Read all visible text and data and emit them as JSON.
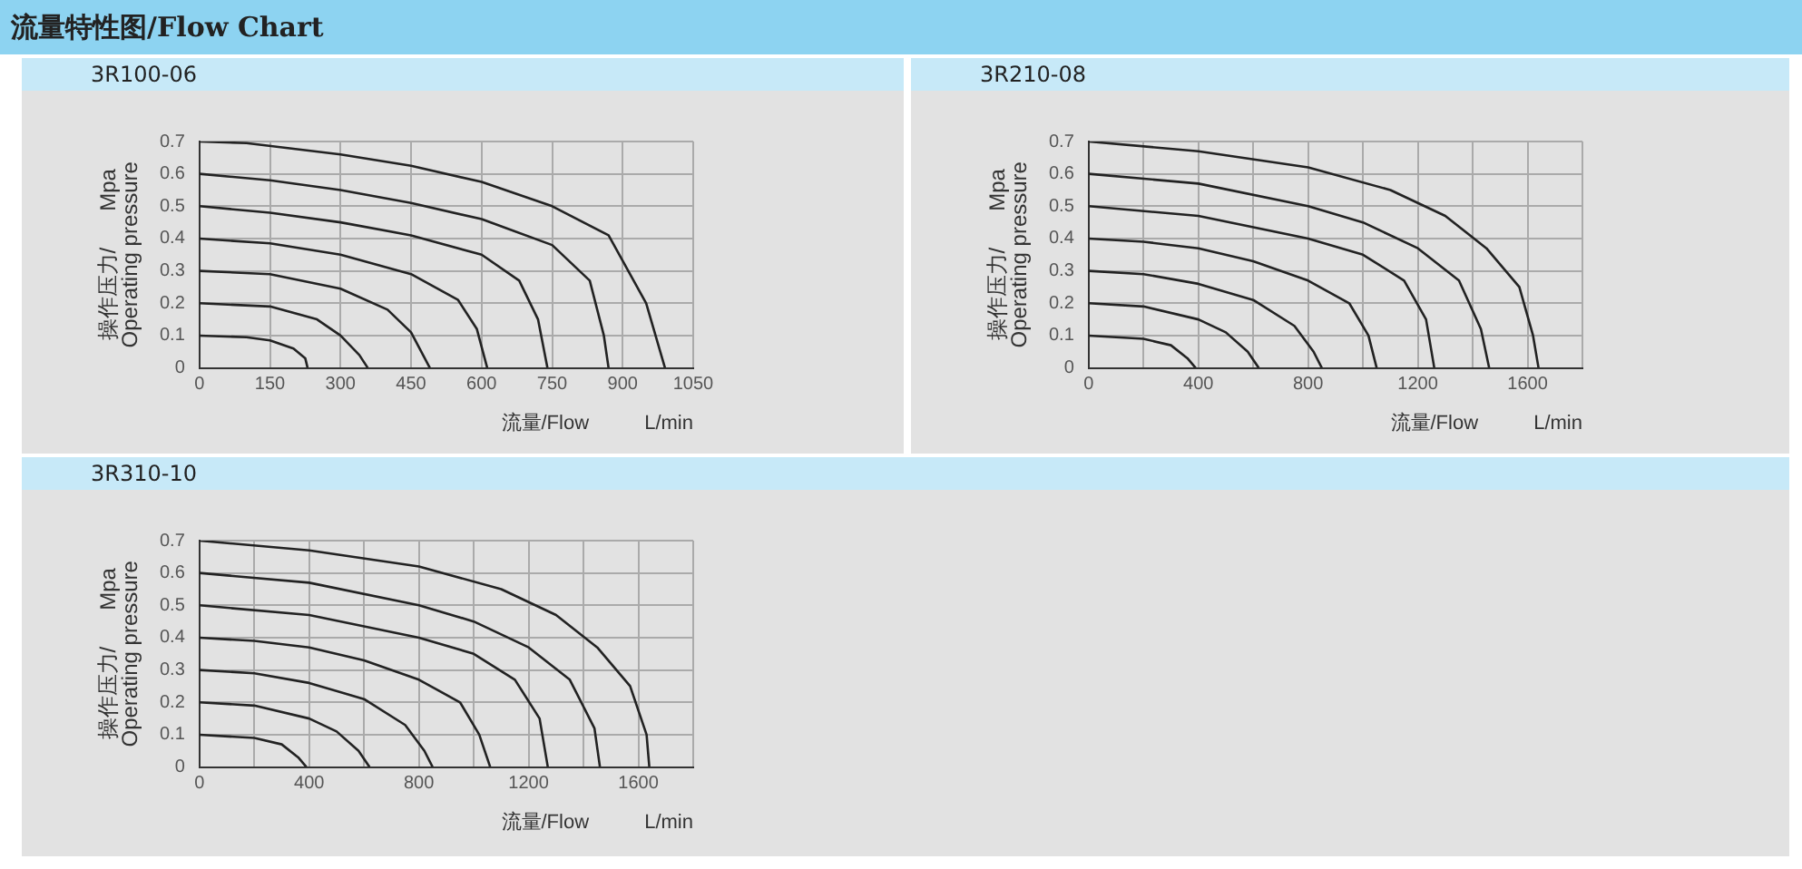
{
  "chart_data": [
    {
      "type": "line",
      "title": "流量特性图/Flow Chart",
      "subtitle": "3R100-06",
      "xlabel": "流量/Flow          L/min",
      "ylabel": "操作压力/      Mpa\nOperating pressure",
      "xlim": [
        0,
        1050
      ],
      "xticks": [
        0,
        150,
        300,
        450,
        600,
        750,
        900,
        1050
      ],
      "ylim": [
        0,
        0.7
      ],
      "yticks": [
        0,
        0.1,
        0.2,
        0.3,
        0.4,
        0.5,
        0.6,
        0.7
      ],
      "grid": true,
      "legend": false,
      "marker": "none",
      "line_style": "solid",
      "series": [
        {
          "color": "#222222",
          "x": [
            0,
            100,
            150,
            200,
            225,
            230
          ],
          "values": [
            0.1,
            0.095,
            0.085,
            0.06,
            0.03,
            0
          ]
        },
        {
          "color": "#222222",
          "x": [
            0,
            150,
            250,
            300,
            340,
            358
          ],
          "values": [
            0.2,
            0.19,
            0.15,
            0.1,
            0.04,
            0
          ]
        },
        {
          "color": "#222222",
          "x": [
            0,
            150,
            300,
            400,
            450,
            490
          ],
          "values": [
            0.3,
            0.29,
            0.245,
            0.18,
            0.11,
            0
          ]
        },
        {
          "color": "#222222",
          "x": [
            0,
            150,
            300,
            450,
            550,
            590,
            612
          ],
          "values": [
            0.4,
            0.385,
            0.35,
            0.29,
            0.21,
            0.12,
            0
          ]
        },
        {
          "color": "#222222",
          "x": [
            0,
            150,
            300,
            450,
            600,
            680,
            720,
            740
          ],
          "values": [
            0.5,
            0.48,
            0.45,
            0.41,
            0.35,
            0.27,
            0.15,
            0
          ]
        },
        {
          "color": "#222222",
          "x": [
            0,
            150,
            300,
            450,
            600,
            750,
            830,
            860,
            870
          ],
          "values": [
            0.6,
            0.58,
            0.55,
            0.51,
            0.46,
            0.38,
            0.27,
            0.1,
            0
          ]
        },
        {
          "color": "#222222",
          "x": [
            0,
            100,
            300,
            450,
            600,
            750,
            870,
            950,
            990
          ],
          "values": [
            0.7,
            0.695,
            0.66,
            0.625,
            0.575,
            0.5,
            0.41,
            0.2,
            0
          ]
        }
      ]
    },
    {
      "type": "line",
      "subtitle": "3R210-08",
      "xlabel": "流量/Flow          L/min",
      "ylabel": "操作压力/      Mpa\nOperating pressure",
      "xlim": [
        0,
        1800
      ],
      "xticks": [
        0,
        {
          "value": 200,
          "label": null
        },
        400,
        {
          "value": 600,
          "label": null
        },
        800,
        {
          "value": 1000,
          "label": null
        },
        1200,
        {
          "value": 1400,
          "label": null
        },
        1600,
        {
          "value": 1800,
          "label": null
        }
      ],
      "ylim": [
        0,
        0.7
      ],
      "yticks": [
        0,
        0.1,
        0.2,
        0.3,
        0.4,
        0.5,
        0.6,
        0.7
      ],
      "grid": true,
      "legend": false,
      "marker": "none",
      "line_style": "solid",
      "series": [
        {
          "color": "#222222",
          "x": [
            0,
            200,
            300,
            360,
            390
          ],
          "values": [
            0.1,
            0.09,
            0.07,
            0.03,
            0
          ]
        },
        {
          "color": "#222222",
          "x": [
            0,
            200,
            400,
            500,
            580,
            620
          ],
          "values": [
            0.2,
            0.19,
            0.15,
            0.11,
            0.05,
            0
          ]
        },
        {
          "color": "#222222",
          "x": [
            0,
            200,
            400,
            600,
            750,
            820,
            850
          ],
          "values": [
            0.3,
            0.29,
            0.26,
            0.21,
            0.13,
            0.05,
            0
          ]
        },
        {
          "color": "#222222",
          "x": [
            0,
            200,
            400,
            600,
            800,
            950,
            1020,
            1050
          ],
          "values": [
            0.4,
            0.39,
            0.37,
            0.33,
            0.27,
            0.2,
            0.1,
            0
          ]
        },
        {
          "color": "#222222",
          "x": [
            0,
            400,
            800,
            1000,
            1150,
            1230,
            1260
          ],
          "values": [
            0.5,
            0.47,
            0.4,
            0.35,
            0.27,
            0.15,
            0
          ]
        },
        {
          "color": "#222222",
          "x": [
            0,
            400,
            800,
            1000,
            1200,
            1350,
            1430,
            1460
          ],
          "values": [
            0.6,
            0.57,
            0.5,
            0.45,
            0.37,
            0.27,
            0.12,
            0
          ]
        },
        {
          "color": "#222222",
          "x": [
            0,
            400,
            800,
            1100,
            1300,
            1450,
            1570,
            1620,
            1640
          ],
          "values": [
            0.7,
            0.67,
            0.62,
            0.55,
            0.47,
            0.37,
            0.25,
            0.1,
            0
          ]
        }
      ]
    },
    {
      "type": "line",
      "subtitle": "3R310-10",
      "xlabel": "流量/Flow          L/min",
      "ylabel": "操作压力/      Mpa\nOperating pressure",
      "xlim": [
        0,
        1800
      ],
      "xticks": [
        0,
        {
          "value": 200,
          "label": null
        },
        400,
        {
          "value": 600,
          "label": null
        },
        800,
        {
          "value": 1000,
          "label": null
        },
        1200,
        {
          "value": 1400,
          "label": null
        },
        1600,
        {
          "value": 1800,
          "label": null
        }
      ],
      "ylim": [
        0,
        0.7
      ],
      "yticks": [
        0,
        0.1,
        0.2,
        0.3,
        0.4,
        0.5,
        0.6,
        0.7
      ],
      "grid": true,
      "legend": false,
      "marker": "none",
      "line_style": "solid",
      "series": [
        {
          "color": "#222222",
          "x": [
            0,
            200,
            300,
            360,
            390
          ],
          "values": [
            0.1,
            0.09,
            0.07,
            0.03,
            0
          ]
        },
        {
          "color": "#222222",
          "x": [
            0,
            200,
            400,
            500,
            580,
            620
          ],
          "values": [
            0.2,
            0.19,
            0.15,
            0.11,
            0.05,
            0
          ]
        },
        {
          "color": "#222222",
          "x": [
            0,
            200,
            400,
            600,
            750,
            820,
            850
          ],
          "values": [
            0.3,
            0.29,
            0.26,
            0.21,
            0.13,
            0.05,
            0
          ]
        },
        {
          "color": "#222222",
          "x": [
            0,
            200,
            400,
            600,
            800,
            950,
            1020,
            1060
          ],
          "values": [
            0.4,
            0.39,
            0.37,
            0.33,
            0.27,
            0.2,
            0.1,
            0
          ]
        },
        {
          "color": "#222222",
          "x": [
            0,
            400,
            800,
            1000,
            1150,
            1240,
            1270
          ],
          "values": [
            0.5,
            0.47,
            0.4,
            0.35,
            0.27,
            0.15,
            0
          ]
        },
        {
          "color": "#222222",
          "x": [
            0,
            400,
            800,
            1000,
            1200,
            1350,
            1440,
            1460
          ],
          "values": [
            0.6,
            0.57,
            0.5,
            0.45,
            0.37,
            0.27,
            0.12,
            0
          ]
        },
        {
          "color": "#222222",
          "x": [
            0,
            400,
            800,
            1100,
            1300,
            1450,
            1570,
            1630,
            1640
          ],
          "values": [
            0.7,
            0.67,
            0.62,
            0.55,
            0.47,
            0.37,
            0.25,
            0.1,
            0
          ]
        }
      ]
    }
  ]
}
